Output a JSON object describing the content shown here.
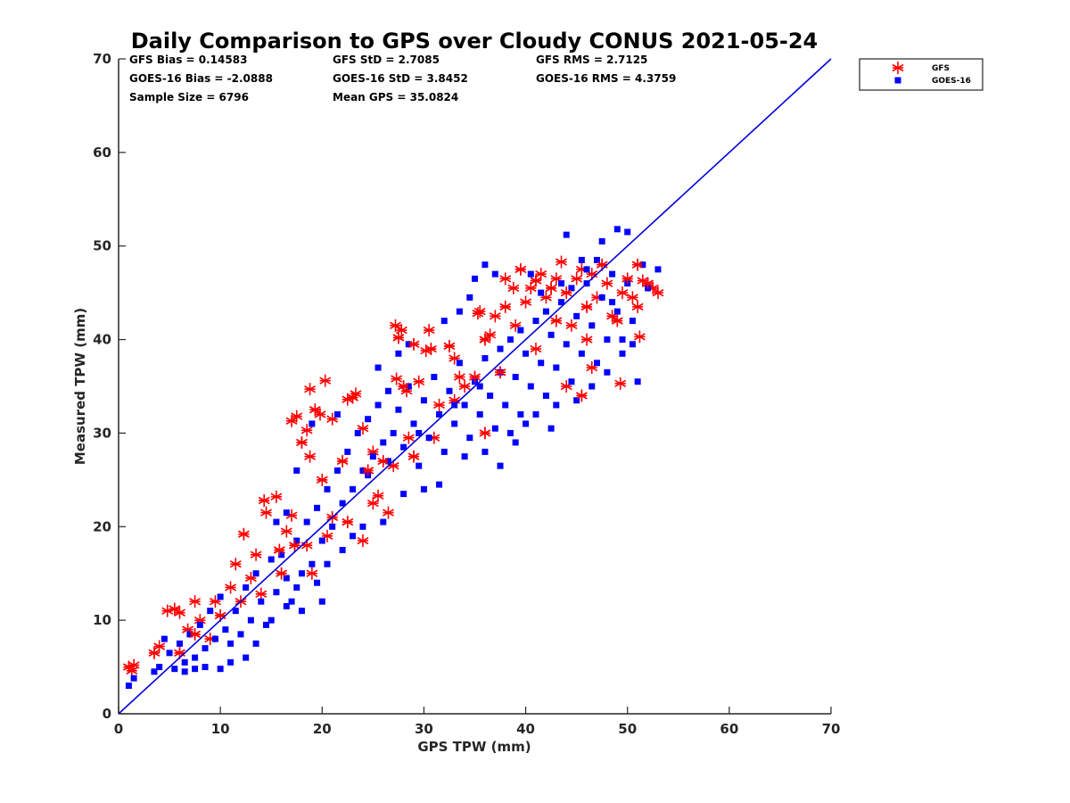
{
  "chart_data": {
    "type": "scatter",
    "title": "Daily Comparison to GPS over Cloudy CONUS 2021-05-24",
    "xlabel": "GPS TPW (mm)",
    "ylabel": "Measured TPW (mm)",
    "xlim": [
      0,
      70
    ],
    "ylim": [
      0,
      70
    ],
    "xticks": [
      "0",
      "10",
      "20",
      "30",
      "40",
      "50",
      "60",
      "70"
    ],
    "yticks": [
      "0",
      "10",
      "20",
      "30",
      "40",
      "50",
      "60",
      "70"
    ],
    "grid": false,
    "legend_position": "outside-top-right",
    "stats": [
      {
        "label": "GFS Bias = 0.14583"
      },
      {
        "label": "GFS StD = 2.7085"
      },
      {
        "label": "GFS RMS = 2.7125"
      },
      {
        "label": "GOES-16 Bias = -2.0888"
      },
      {
        "label": "GOES-16 StD = 3.8452"
      },
      {
        "label": "GOES-16 RMS = 4.3759"
      },
      {
        "label": "Sample Size = 6796"
      },
      {
        "label": "Mean GPS = 35.0824"
      }
    ],
    "reference_line": {
      "x": [
        0,
        70
      ],
      "y": [
        0,
        70
      ],
      "color": "#0000dd"
    },
    "series": [
      {
        "name": "GFS",
        "marker": "asterisk",
        "color": "#ff0000",
        "points": [
          [
            1.0,
            5.0
          ],
          [
            1.5,
            5.2
          ],
          [
            1.3,
            4.6
          ],
          [
            3.5,
            6.5
          ],
          [
            4.0,
            7.2
          ],
          [
            4.8,
            11.0
          ],
          [
            5.5,
            11.2
          ],
          [
            6.0,
            10.8
          ],
          [
            6.8,
            9.0
          ],
          [
            7.5,
            8.5
          ],
          [
            8.0,
            10.0
          ],
          [
            9.5,
            12.0
          ],
          [
            10.0,
            10.5
          ],
          [
            11.0,
            13.5
          ],
          [
            11.5,
            16.0
          ],
          [
            12.3,
            19.2
          ],
          [
            13.0,
            14.5
          ],
          [
            13.5,
            17.0
          ],
          [
            14.3,
            22.8
          ],
          [
            14.5,
            21.5
          ],
          [
            15.5,
            23.2
          ],
          [
            15.8,
            17.5
          ],
          [
            16.5,
            19.5
          ],
          [
            17.0,
            21.2
          ],
          [
            17.3,
            18.0
          ],
          [
            17.0,
            31.3
          ],
          [
            17.5,
            31.8
          ],
          [
            18.0,
            29.0
          ],
          [
            18.5,
            30.3
          ],
          [
            18.8,
            34.7
          ],
          [
            19.3,
            32.5
          ],
          [
            19.8,
            32.0
          ],
          [
            20.3,
            35.6
          ],
          [
            20.0,
            25.0
          ],
          [
            18.8,
            27.5
          ],
          [
            21.0,
            31.5
          ],
          [
            21.0,
            21.0
          ],
          [
            20.5,
            19.0
          ],
          [
            22.5,
            33.6
          ],
          [
            23.0,
            33.8
          ],
          [
            23.3,
            34.2
          ],
          [
            24.0,
            30.5
          ],
          [
            24.5,
            26.0
          ],
          [
            25.0,
            22.5
          ],
          [
            25.5,
            23.3
          ],
          [
            26.0,
            27.0
          ],
          [
            26.5,
            21.5
          ],
          [
            27.2,
            41.5
          ],
          [
            27.5,
            40.2
          ],
          [
            27.8,
            41.0
          ],
          [
            27.3,
            35.8
          ],
          [
            28.0,
            35.0
          ],
          [
            28.3,
            34.5
          ],
          [
            28.5,
            29.5
          ],
          [
            29.0,
            39.5
          ],
          [
            29.5,
            35.5
          ],
          [
            30.5,
            41.0
          ],
          [
            30.7,
            39.0
          ],
          [
            30.2,
            38.8
          ],
          [
            31.5,
            33.0
          ],
          [
            32.5,
            39.3
          ],
          [
            33.0,
            38.0
          ],
          [
            34.0,
            35.0
          ],
          [
            35.0,
            36.0
          ],
          [
            35.3,
            42.8
          ],
          [
            35.5,
            43.0
          ],
          [
            36.0,
            40.0
          ],
          [
            36.5,
            40.5
          ],
          [
            37.0,
            42.5
          ],
          [
            38.0,
            43.5
          ],
          [
            38.0,
            46.5
          ],
          [
            38.8,
            45.5
          ],
          [
            39.5,
            47.5
          ],
          [
            40.0,
            44.0
          ],
          [
            40.5,
            45.5
          ],
          [
            41.0,
            46.3
          ],
          [
            41.5,
            47.0
          ],
          [
            42.0,
            44.5
          ],
          [
            42.5,
            45.5
          ],
          [
            43.0,
            46.5
          ],
          [
            43.5,
            48.3
          ],
          [
            44.0,
            45.0
          ],
          [
            45.0,
            46.5
          ],
          [
            45.5,
            47.5
          ],
          [
            46.0,
            43.5
          ],
          [
            46.5,
            47.0
          ],
          [
            47.0,
            44.5
          ],
          [
            47.5,
            48.0
          ],
          [
            48.0,
            46.0
          ],
          [
            48.5,
            42.5
          ],
          [
            49.0,
            42.0
          ],
          [
            49.5,
            45.0
          ],
          [
            49.3,
            35.3
          ],
          [
            50.0,
            46.5
          ],
          [
            50.5,
            44.5
          ],
          [
            51.0,
            43.5
          ],
          [
            51.0,
            48.0
          ],
          [
            51.2,
            40.3
          ],
          [
            51.5,
            46.3
          ],
          [
            52.0,
            46.0
          ],
          [
            52.5,
            45.5
          ],
          [
            53.0,
            45.0
          ],
          [
            45.5,
            34.0
          ],
          [
            44.0,
            35.0
          ],
          [
            46.5,
            37.0
          ],
          [
            36.0,
            30.0
          ],
          [
            33.0,
            33.5
          ],
          [
            25.0,
            28.0
          ],
          [
            22.0,
            27.0
          ],
          [
            12.0,
            12.0
          ],
          [
            9.0,
            8.0
          ],
          [
            6.0,
            6.5
          ],
          [
            7.5,
            12.0
          ],
          [
            14.0,
            12.8
          ],
          [
            16.0,
            15.0
          ],
          [
            18.5,
            18.0
          ],
          [
            19.0,
            15.0
          ],
          [
            22.5,
            20.5
          ],
          [
            24.0,
            18.5
          ],
          [
            27.0,
            26.5
          ],
          [
            29.0,
            27.5
          ],
          [
            31.0,
            29.5
          ],
          [
            33.5,
            36.0
          ],
          [
            37.5,
            36.5
          ],
          [
            39.0,
            41.5
          ],
          [
            41.0,
            39.0
          ],
          [
            43.0,
            42.0
          ],
          [
            44.5,
            41.5
          ],
          [
            46.0,
            40.0
          ]
        ]
      },
      {
        "name": "GOES-16",
        "marker": "square",
        "color": "#0000ff",
        "points": [
          [
            1.0,
            3.0
          ],
          [
            1.5,
            3.8
          ],
          [
            3.5,
            4.5
          ],
          [
            4.0,
            5.0
          ],
          [
            4.5,
            8.0
          ],
          [
            5.0,
            6.5
          ],
          [
            5.5,
            4.8
          ],
          [
            6.0,
            7.5
          ],
          [
            6.5,
            5.5
          ],
          [
            7.0,
            8.5
          ],
          [
            7.5,
            6.0
          ],
          [
            8.0,
            9.5
          ],
          [
            8.5,
            7.0
          ],
          [
            9.0,
            11.0
          ],
          [
            9.5,
            8.0
          ],
          [
            10.0,
            12.5
          ],
          [
            10.5,
            9.0
          ],
          [
            11.0,
            7.5
          ],
          [
            11.5,
            11.0
          ],
          [
            12.0,
            8.5
          ],
          [
            12.5,
            13.5
          ],
          [
            13.0,
            10.0
          ],
          [
            13.5,
            15.0
          ],
          [
            14.0,
            12.0
          ],
          [
            14.5,
            9.5
          ],
          [
            15.0,
            16.5
          ],
          [
            15.5,
            13.0
          ],
          [
            16.0,
            17.0
          ],
          [
            16.5,
            14.5
          ],
          [
            17.0,
            12.0
          ],
          [
            17.5,
            18.5
          ],
          [
            18.0,
            15.0
          ],
          [
            18.5,
            20.5
          ],
          [
            19.0,
            16.0
          ],
          [
            19.5,
            22.0
          ],
          [
            20.0,
            18.5
          ],
          [
            20.5,
            24.0
          ],
          [
            21.0,
            20.0
          ],
          [
            21.5,
            26.0
          ],
          [
            22.0,
            22.5
          ],
          [
            22.5,
            28.0
          ],
          [
            23.0,
            24.0
          ],
          [
            23.5,
            30.0
          ],
          [
            24.0,
            26.0
          ],
          [
            24.5,
            31.5
          ],
          [
            25.0,
            27.5
          ],
          [
            25.5,
            33.0
          ],
          [
            26.0,
            29.0
          ],
          [
            26.5,
            34.5
          ],
          [
            27.0,
            30.0
          ],
          [
            27.5,
            32.5
          ],
          [
            28.0,
            28.5
          ],
          [
            28.5,
            35.0
          ],
          [
            29.0,
            31.0
          ],
          [
            29.5,
            26.5
          ],
          [
            30.0,
            33.5
          ],
          [
            30.5,
            29.5
          ],
          [
            31.0,
            36.0
          ],
          [
            31.5,
            32.0
          ],
          [
            32.0,
            28.0
          ],
          [
            32.5,
            34.5
          ],
          [
            33.0,
            31.0
          ],
          [
            33.5,
            37.5
          ],
          [
            34.0,
            33.0
          ],
          [
            34.5,
            29.5
          ],
          [
            35.0,
            35.5
          ],
          [
            35.5,
            32.0
          ],
          [
            36.0,
            38.0
          ],
          [
            36.5,
            34.0
          ],
          [
            37.0,
            30.5
          ],
          [
            37.5,
            36.5
          ],
          [
            38.0,
            33.0
          ],
          [
            38.5,
            40.0
          ],
          [
            39.0,
            36.0
          ],
          [
            39.5,
            32.0
          ],
          [
            40.0,
            38.5
          ],
          [
            40.5,
            35.0
          ],
          [
            41.0,
            42.0
          ],
          [
            41.5,
            37.5
          ],
          [
            42.0,
            34.0
          ],
          [
            42.5,
            40.5
          ],
          [
            43.0,
            37.0
          ],
          [
            43.5,
            44.0
          ],
          [
            44.0,
            39.5
          ],
          [
            44.5,
            35.5
          ],
          [
            45.0,
            42.5
          ],
          [
            45.5,
            38.5
          ],
          [
            46.0,
            46.0
          ],
          [
            46.5,
            41.5
          ],
          [
            47.0,
            37.5
          ],
          [
            47.5,
            44.5
          ],
          [
            48.0,
            40.0
          ],
          [
            48.5,
            47.0
          ],
          [
            49.0,
            43.0
          ],
          [
            49.5,
            38.5
          ],
          [
            50.0,
            46.0
          ],
          [
            50.5,
            42.0
          ],
          [
            51.0,
            35.5
          ],
          [
            51.5,
            48.0
          ],
          [
            52.0,
            45.5
          ],
          [
            53.0,
            47.5
          ],
          [
            49.0,
            51.8
          ],
          [
            50.0,
            51.5
          ],
          [
            47.5,
            50.5
          ],
          [
            44.0,
            51.2
          ],
          [
            37.0,
            47.0
          ],
          [
            36.0,
            48.0
          ],
          [
            35.0,
            46.5
          ],
          [
            34.5,
            44.5
          ],
          [
            33.5,
            43.0
          ],
          [
            32.0,
            42.0
          ],
          [
            28.5,
            39.5
          ],
          [
            27.5,
            38.5
          ],
          [
            25.5,
            37.0
          ],
          [
            21.5,
            32.0
          ],
          [
            19.0,
            31.0
          ],
          [
            17.5,
            26.0
          ],
          [
            16.5,
            21.5
          ],
          [
            15.5,
            20.5
          ],
          [
            37.5,
            26.5
          ],
          [
            39.0,
            29.0
          ],
          [
            36.0,
            28.0
          ],
          [
            34.0,
            27.5
          ],
          [
            31.5,
            24.5
          ],
          [
            30.0,
            24.0
          ],
          [
            28.0,
            23.5
          ],
          [
            26.0,
            20.5
          ],
          [
            24.0,
            20.0
          ],
          [
            23.0,
            19.0
          ],
          [
            20.5,
            16.0
          ],
          [
            19.5,
            14.0
          ],
          [
            17.5,
            13.5
          ],
          [
            16.5,
            11.5
          ],
          [
            15.0,
            10.0
          ],
          [
            13.5,
            7.5
          ],
          [
            12.5,
            6.0
          ],
          [
            11.0,
            5.5
          ],
          [
            10.0,
            4.8
          ],
          [
            8.5,
            5.0
          ],
          [
            7.5,
            4.8
          ],
          [
            6.5,
            4.5
          ],
          [
            20.0,
            12.0
          ],
          [
            18.0,
            11.0
          ],
          [
            22.0,
            17.5
          ],
          [
            43.0,
            33.0
          ],
          [
            45.0,
            33.5
          ],
          [
            48.0,
            36.5
          ],
          [
            49.5,
            40.0
          ],
          [
            38.5,
            30.0
          ],
          [
            41.0,
            32.0
          ],
          [
            42.5,
            30.5
          ],
          [
            40.0,
            31.0
          ],
          [
            46.5,
            35.0
          ],
          [
            50.5,
            39.5
          ],
          [
            24.5,
            25.5
          ],
          [
            26.5,
            27.0
          ],
          [
            29.5,
            30.0
          ],
          [
            33.0,
            33.0
          ],
          [
            35.5,
            35.0
          ],
          [
            37.5,
            39.0
          ],
          [
            39.5,
            41.0
          ],
          [
            42.0,
            43.0
          ],
          [
            44.5,
            45.5
          ],
          [
            46.0,
            47.5
          ],
          [
            47.0,
            48.5
          ],
          [
            48.5,
            44.0
          ],
          [
            40.5,
            47.0
          ],
          [
            41.5,
            45.0
          ],
          [
            43.5,
            46.0
          ],
          [
            45.5,
            48.5
          ]
        ]
      }
    ]
  }
}
